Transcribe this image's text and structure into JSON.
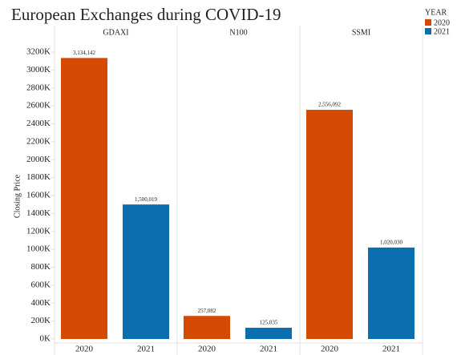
{
  "chart_data": {
    "type": "bar",
    "title": "European Exchanges during COVID-19",
    "categories": [
      "GDAXI",
      "N100",
      "SSMI"
    ],
    "y_label": "Closing Price",
    "legend_title": "YEAR",
    "legend": "top-right",
    "grid": false,
    "series": [
      {
        "name": "2020",
        "color": "#d54a03",
        "values": [
          3134142,
          257082,
          2556092
        ],
        "value_labels": [
          "3,134,142",
          "257,082",
          "2,556,092"
        ]
      },
      {
        "name": "2021",
        "color": "#0b6eae",
        "values": [
          1500019,
          125035,
          1020030
        ],
        "value_labels": [
          "1,500,019",
          "125,035",
          "1,020,030"
        ]
      }
    ],
    "ylim": [
      0,
      3200000
    ],
    "yticks": [
      {
        "value": 0,
        "label": "0K"
      },
      {
        "value": 200000,
        "label": "200K"
      },
      {
        "value": 400000,
        "label": "400K"
      },
      {
        "value": 600000,
        "label": "600K"
      },
      {
        "value": 800000,
        "label": "800K"
      },
      {
        "value": 1000000,
        "label": "1000K"
      },
      {
        "value": 1200000,
        "label": "1200K"
      },
      {
        "value": 1400000,
        "label": "1400K"
      },
      {
        "value": 1600000,
        "label": "1600K"
      },
      {
        "value": 1800000,
        "label": "1800K"
      },
      {
        "value": 2000000,
        "label": "2000K"
      },
      {
        "value": 2200000,
        "label": "2200K"
      },
      {
        "value": 2400000,
        "label": "2400K"
      },
      {
        "value": 2600000,
        "label": "2600K"
      },
      {
        "value": 2800000,
        "label": "2800K"
      },
      {
        "value": 3000000,
        "label": "3000K"
      },
      {
        "value": 3200000,
        "label": "3200K"
      }
    ]
  }
}
